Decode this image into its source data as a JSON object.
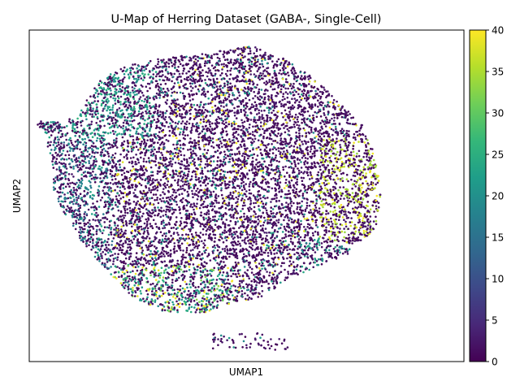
{
  "chart_data": {
    "type": "scatter",
    "title": "U-Map of Herring Dataset (GABA-, Single-Cell)",
    "xlabel": "UMAP1",
    "ylabel": "UMAP2",
    "x_ticks_shown": false,
    "y_ticks_shown": false,
    "grid": false,
    "xlim": [
      -7.4,
      10.4
    ],
    "ylim": [
      -3.4,
      9.4
    ],
    "colorbar": {
      "colormap": "viridis",
      "range": [
        0,
        40
      ],
      "ticks": [
        0,
        5,
        10,
        15,
        20,
        25,
        30,
        35,
        40
      ],
      "tick_labels": [
        "0",
        "5",
        "10",
        "15",
        "20",
        "25",
        "30",
        "35",
        "40"
      ]
    },
    "colormap_stops": [
      "#440154",
      "#482878",
      "#3e4989",
      "#31688e",
      "#26828e",
      "#1f9e89",
      "#35b779",
      "#6ece58",
      "#b5de2b",
      "#fde725"
    ],
    "point_summary": {
      "approx_count": 9000,
      "dominant_value_range": [
        0,
        3
      ],
      "regions": [
        {
          "name": "main body",
          "x_range": [
            -6.9,
            7.0
          ],
          "y_range": [
            -1.6,
            8.8
          ],
          "typical_value": 1
        },
        {
          "name": "right edge",
          "x_range": [
            4.5,
            7.0
          ],
          "y_range": [
            1.5,
            5.0
          ],
          "typical_value": 38
        },
        {
          "name": "upper-left lobe",
          "x_range": [
            -4.5,
            -2.5
          ],
          "y_range": [
            5.5,
            7.5
          ],
          "typical_value": 22
        },
        {
          "name": "lower-left rim",
          "x_range": [
            -3.5,
            0.5
          ],
          "y_range": [
            -1.2,
            0.5
          ],
          "typical_value": 22
        },
        {
          "name": "bottom tail",
          "x_range": [
            0.0,
            3.2
          ],
          "y_range": [
            -3.0,
            -2.4
          ],
          "typical_value": 1
        }
      ]
    }
  }
}
